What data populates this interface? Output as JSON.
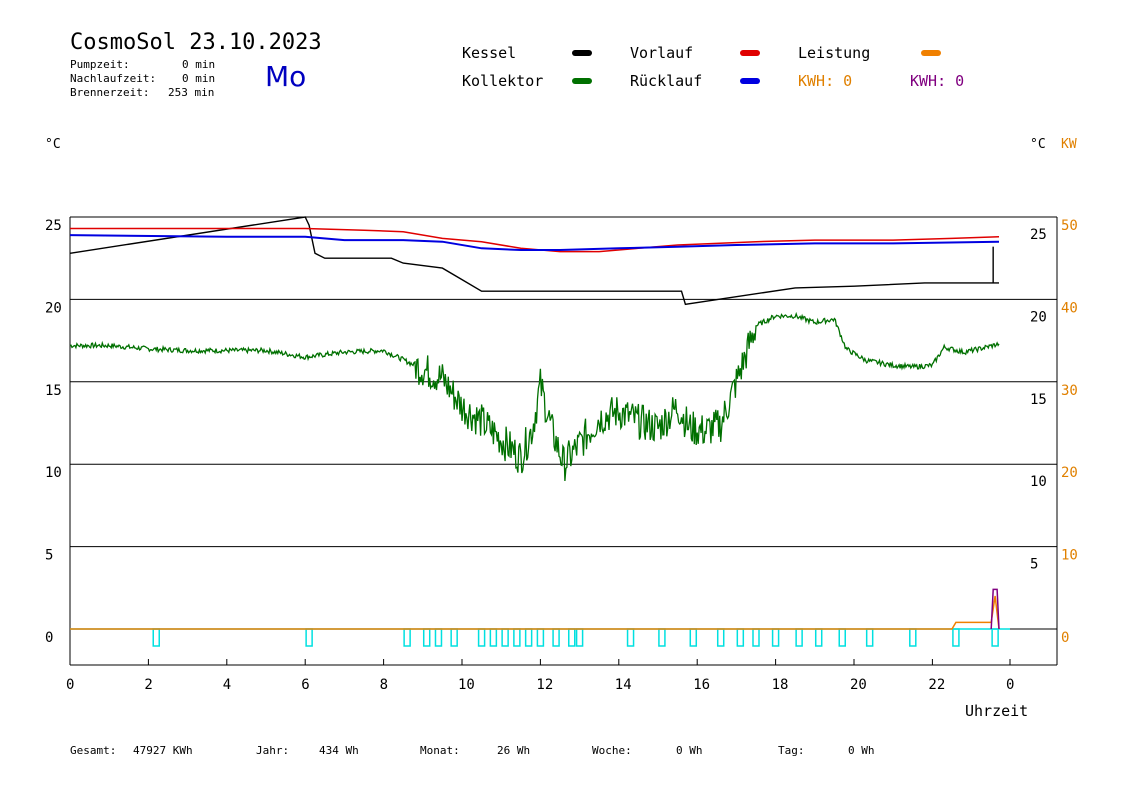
{
  "header": {
    "title": "CosmoSol 23.10.2023",
    "day": "Mo",
    "stats": [
      {
        "label": "Pumpzeit:",
        "value": "0 min"
      },
      {
        "label": "Nachlaufzeit:",
        "value": "0 min"
      },
      {
        "label": "Brennerzeit:",
        "value": "253 min"
      }
    ]
  },
  "legend": {
    "kessel": "Kessel",
    "kollektor": "Kollektor",
    "vorlauf": "Vorlauf",
    "ruecklauf": "Rücklauf",
    "leistung": "Leistung",
    "kwh_orange": "KWH: 0",
    "kwh_purple": "KWH: 0",
    "colors": {
      "kessel": "#000000",
      "kollektor": "#007000",
      "vorlauf": "#e00000",
      "ruecklauf": "#0000e0",
      "leistung": "#f08000"
    }
  },
  "axes": {
    "left_unit": "°C",
    "right_unit": "°C",
    "right_kw_unit": "KW",
    "xlabel": "Uhrzeit"
  },
  "footer": {
    "gesamt_label": "Gesamt:",
    "gesamt_value": "47927 KWh",
    "jahr_label": "Jahr:",
    "jahr_value": "434 Wh",
    "monat_label": "Monat:",
    "monat_value": "26 Wh",
    "woche_label": "Woche:",
    "woche_value": "0 Wh",
    "tag_label": "Tag:",
    "tag_value": "0 Wh"
  },
  "chart_data": {
    "type": "line",
    "x_ticks": [
      "0",
      "2",
      "4",
      "6",
      "8",
      "10",
      "12",
      "14",
      "16",
      "18",
      "20",
      "22",
      "0"
    ],
    "left_ticks": [
      "25",
      "20",
      "15",
      "10",
      "5",
      "0"
    ],
    "right_temp_ticks": [
      "25",
      "20",
      "15",
      "10",
      "5"
    ],
    "right_kw_ticks": [
      "50",
      "40",
      "30",
      "20",
      "10",
      "0"
    ],
    "grid": true,
    "series": [
      {
        "name": "Kessel",
        "color": "#000000",
        "points": [
          [
            0,
            22.8
          ],
          [
            6.0,
            25.0
          ],
          [
            6.1,
            24.5
          ],
          [
            6.25,
            22.8
          ],
          [
            6.5,
            22.5
          ],
          [
            8.2,
            22.5
          ],
          [
            8.5,
            22.2
          ],
          [
            9.5,
            21.9
          ],
          [
            10.0,
            21.2
          ],
          [
            10.5,
            20.5
          ],
          [
            12,
            20.5
          ],
          [
            14,
            20.5
          ],
          [
            15.6,
            20.5
          ],
          [
            15.7,
            19.7
          ],
          [
            18.5,
            20.7
          ],
          [
            20,
            20.8
          ],
          [
            21.8,
            21.0
          ],
          [
            23.7,
            21.0
          ]
        ]
      },
      {
        "name": "Vorlauf",
        "color": "#e00000",
        "points": [
          [
            0,
            24.3
          ],
          [
            4,
            24.3
          ],
          [
            6,
            24.3
          ],
          [
            7.5,
            24.2
          ],
          [
            8.5,
            24.1
          ],
          [
            9.5,
            23.7
          ],
          [
            10.5,
            23.5
          ],
          [
            11.5,
            23.1
          ],
          [
            12.5,
            22.9
          ],
          [
            13.5,
            22.9
          ],
          [
            14.5,
            23.1
          ],
          [
            15.5,
            23.3
          ],
          [
            16.5,
            23.4
          ],
          [
            17.5,
            23.5
          ],
          [
            19,
            23.6
          ],
          [
            21,
            23.6
          ],
          [
            22.5,
            23.7
          ],
          [
            23.7,
            23.8
          ]
        ]
      },
      {
        "name": "Rücklauf",
        "color": "#0000e0",
        "points": [
          [
            0,
            23.9
          ],
          [
            4,
            23.8
          ],
          [
            6,
            23.8
          ],
          [
            7,
            23.6
          ],
          [
            8.5,
            23.6
          ],
          [
            9.5,
            23.5
          ],
          [
            10.5,
            23.1
          ],
          [
            11.5,
            23.0
          ],
          [
            12.5,
            23.0
          ],
          [
            14,
            23.1
          ],
          [
            15.5,
            23.2
          ],
          [
            17,
            23.3
          ],
          [
            19,
            23.4
          ],
          [
            21,
            23.4
          ],
          [
            23.7,
            23.5
          ]
        ]
      },
      {
        "name": "Kollektor",
        "color": "#007000",
        "points": [
          [
            0,
            17.2
          ],
          [
            1,
            17.2
          ],
          [
            2,
            17.0
          ],
          [
            3,
            16.9
          ],
          [
            4,
            16.9
          ],
          [
            5,
            16.9
          ],
          [
            6,
            16.5
          ],
          [
            7,
            16.8
          ],
          [
            8,
            16.9
          ],
          [
            8.8,
            16.0
          ],
          [
            9.5,
            15.2
          ],
          [
            10,
            13.5
          ],
          [
            10.5,
            12.6
          ],
          [
            11,
            11.5
          ],
          [
            11.5,
            10.4
          ],
          [
            11.8,
            12.2
          ],
          [
            12.0,
            14.8
          ],
          [
            12.3,
            12.0
          ],
          [
            12.6,
            10.0
          ],
          [
            13,
            11.2
          ],
          [
            13.5,
            12.8
          ],
          [
            14,
            13.2
          ],
          [
            14.5,
            12.6
          ],
          [
            15,
            12.2
          ],
          [
            15.5,
            13.5
          ],
          [
            15.8,
            12.2
          ],
          [
            16.2,
            12.0
          ],
          [
            16.6,
            12.4
          ],
          [
            17.0,
            15.0
          ],
          [
            17.5,
            18.4
          ],
          [
            18,
            19.0
          ],
          [
            18.5,
            19.0
          ],
          [
            19.0,
            18.6
          ],
          [
            19.5,
            18.8
          ],
          [
            19.8,
            17.0
          ],
          [
            20.3,
            16.3
          ],
          [
            21,
            16.0
          ],
          [
            21.5,
            15.9
          ],
          [
            22,
            16.0
          ],
          [
            22.3,
            17.1
          ],
          [
            22.8,
            16.8
          ],
          [
            23.2,
            17.0
          ],
          [
            23.7,
            17.3
          ]
        ]
      },
      {
        "name": "Leistung",
        "color": "#f08000",
        "points": [
          [
            0,
            0
          ],
          [
            22.5,
            0
          ],
          [
            22.6,
            0.4
          ],
          [
            23.5,
            0.4
          ],
          [
            23.6,
            2.0
          ],
          [
            23.7,
            0
          ]
        ]
      },
      {
        "name": "KWH",
        "color": "#800080",
        "points": [
          [
            23.5,
            0
          ],
          [
            23.55,
            2.4
          ],
          [
            23.65,
            2.4
          ],
          [
            23.7,
            0
          ]
        ]
      }
    ],
    "pump_pulse_hours": [
      2.2,
      6.1,
      8.6,
      9.1,
      9.4,
      9.8,
      10.5,
      10.8,
      11.1,
      11.4,
      11.7,
      12.0,
      12.4,
      12.8,
      13.0,
      14.3,
      15.1,
      15.9,
      16.6,
      17.1,
      17.5,
      18.0,
      18.6,
      19.1,
      19.7,
      20.4,
      21.5,
      22.6,
      23.6
    ],
    "pump_pulse_color": "#00e0e0"
  }
}
